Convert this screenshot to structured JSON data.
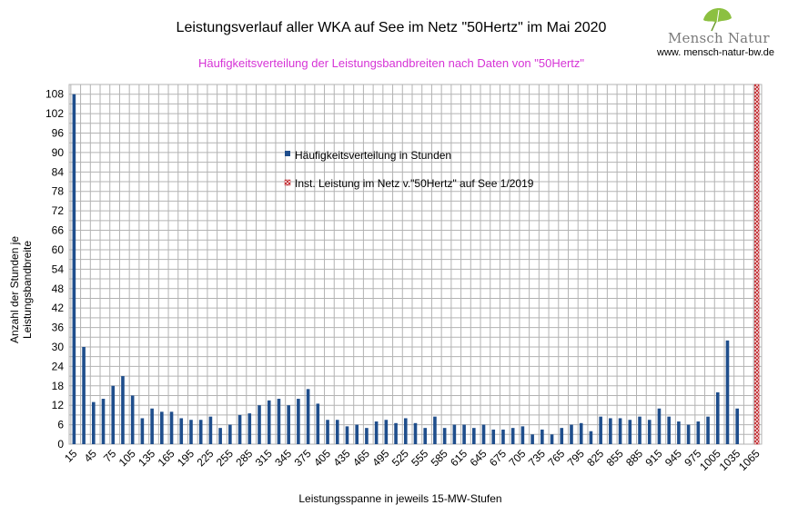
{
  "chart_data": {
    "type": "bar",
    "title": "Leistungsverlauf aller WKA auf See im Netz \"50Hertz\" im Mai 2020",
    "subtitle": "Häufigkeitsverteilung der Leistungsbandbreiten nach Daten von \"50Hertz\"",
    "xlabel": "Leistungsspanne in jeweils 15-MW-Stufen",
    "ylabel": "Anzahl der Stunden je Leistungsbandbreite",
    "ylim": [
      0,
      111
    ],
    "yticks": [
      0,
      6,
      12,
      18,
      24,
      30,
      36,
      42,
      48,
      54,
      60,
      66,
      72,
      78,
      84,
      90,
      96,
      102,
      108
    ],
    "xticks": [
      15,
      45,
      75,
      105,
      135,
      165,
      195,
      225,
      255,
      285,
      315,
      345,
      375,
      405,
      435,
      465,
      495,
      525,
      555,
      585,
      615,
      645,
      675,
      705,
      735,
      765,
      795,
      825,
      855,
      885,
      915,
      945,
      975,
      1005,
      1035,
      1065
    ],
    "grid": true,
    "legend_position": "center",
    "series": [
      {
        "name": "Häufigkeitsverteilung in Stunden",
        "color": "#1f4e8c",
        "x": [
          15,
          30,
          45,
          60,
          75,
          90,
          105,
          120,
          135,
          150,
          165,
          180,
          195,
          210,
          225,
          240,
          255,
          270,
          285,
          300,
          315,
          330,
          345,
          360,
          375,
          390,
          405,
          420,
          435,
          450,
          465,
          480,
          495,
          510,
          525,
          540,
          555,
          570,
          585,
          600,
          615,
          630,
          645,
          660,
          675,
          690,
          705,
          720,
          735,
          750,
          765,
          780,
          795,
          810,
          825,
          840,
          855,
          870,
          885,
          900,
          915,
          930,
          945,
          960,
          975,
          990,
          1005,
          1020,
          1035
        ],
        "values": [
          108,
          30,
          13,
          14,
          18,
          21,
          15,
          8,
          11,
          10,
          10,
          8,
          7.5,
          7.5,
          8.5,
          5,
          6,
          9,
          9.5,
          12,
          13.5,
          14,
          12,
          14,
          17,
          12.5,
          7.5,
          7.5,
          5.5,
          6,
          5,
          7,
          7.5,
          6.5,
          8,
          6.5,
          5,
          8.5,
          5,
          6,
          6,
          5,
          6,
          4.5,
          4.5,
          5,
          5.5,
          3,
          4.5,
          3,
          5,
          6,
          6.5,
          4,
          8.5,
          8,
          8,
          7.5,
          8.5,
          7.5,
          11,
          8.5,
          7,
          6,
          7,
          8.5,
          16,
          32,
          11
        ]
      },
      {
        "name": "Inst. Leistung im Netz v.\"50Hertz\" auf See 1/2019",
        "color": "#c0282d",
        "x": [
          1065
        ],
        "values": [
          111
        ]
      }
    ]
  },
  "logo": {
    "name": "Mensch Natur",
    "url": "www. mensch-natur-bw.de"
  }
}
